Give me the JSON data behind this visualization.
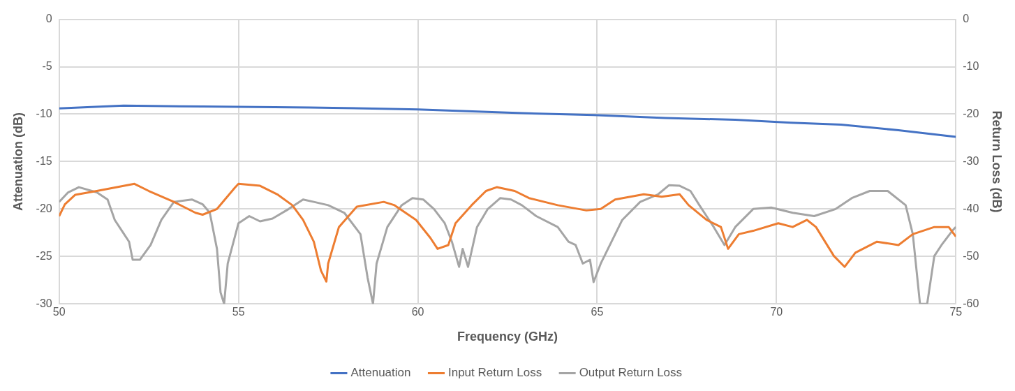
{
  "chart_data": {
    "type": "line",
    "xlabel": "Frequency (GHz)",
    "ylabel": "Attenuation (dB)",
    "y2label": "Return Loss (dB)",
    "xlim": [
      50,
      75
    ],
    "xticks": [
      50,
      55,
      60,
      65,
      70,
      75
    ],
    "ylim": [
      -30,
      0
    ],
    "yticks": [
      -30,
      -25,
      -20,
      -15,
      -10,
      -5,
      0
    ],
    "y2lim": [
      -60,
      0
    ],
    "y2ticks": [
      -60,
      -50,
      -40,
      -30,
      -20,
      -10,
      0
    ],
    "grid": true,
    "legend": "bottom",
    "marker": "none",
    "line_style": "solid",
    "series": [
      {
        "name": "Attenuation",
        "color": "#4472c4",
        "x": [
          50,
          51.8,
          54,
          57,
          60,
          62.9,
          64.9,
          66.9,
          68.85,
          70.4,
          71.8,
          73.4,
          75
        ],
        "values": [
          -9.4,
          -9.1,
          -9.2,
          -9.3,
          -9.5,
          -9.9,
          -10.1,
          -10.4,
          -10.6,
          -10.9,
          -11.1,
          -11.7,
          -12.4
        ]
      },
      {
        "name": "Input Return Loss",
        "color": "#ed7d31",
        "axis": "y2",
        "x": [
          50,
          50.16,
          50.45,
          51.05,
          52.1,
          52.5,
          53.2,
          53.8,
          54,
          54.4,
          54.9,
          55,
          55.6,
          56.1,
          56.5,
          56.8,
          57.1,
          57.3,
          57.45,
          57.5,
          57.8,
          58.3,
          59.05,
          59.35,
          59.95,
          60.35,
          60.55,
          60.85,
          61.05,
          61.5,
          61.9,
          62.2,
          62.7,
          63.1,
          63.9,
          64.7,
          65.1,
          65.5,
          66.3,
          66.8,
          67.3,
          67.55,
          68.05,
          68.45,
          68.65,
          68.95,
          69.35,
          70.05,
          70.45,
          70.85,
          71.1,
          71.6,
          71.9,
          72.2,
          72.8,
          73.4,
          73.8,
          74.4,
          74.8,
          75
        ],
        "values": [
          -41.5,
          -39,
          -37,
          -36.2,
          -34.7,
          -36.2,
          -38.5,
          -40.8,
          -41.2,
          -40,
          -35.5,
          -34.7,
          -35.1,
          -37,
          -39.2,
          -42.3,
          -46.9,
          -53,
          -55.3,
          -51.5,
          -43.8,
          -39.5,
          -38.5,
          -39.2,
          -42.3,
          -46.1,
          -48.4,
          -47.6,
          -43,
          -39.2,
          -36.2,
          -35.4,
          -36.2,
          -37.7,
          -39.2,
          -40.3,
          -40,
          -38,
          -36.9,
          -37.4,
          -36.9,
          -39.2,
          -42.3,
          -43.8,
          -48.4,
          -45.3,
          -44.6,
          -43,
          -43.8,
          -42.3,
          -43.8,
          -49.9,
          -52.2,
          -49.2,
          -46.9,
          -47.6,
          -45.3,
          -43.8,
          -43.8,
          -45.8
        ]
      },
      {
        "name": "Output Return Loss",
        "color": "#a5a5a5",
        "axis": "y2",
        "x": [
          50,
          50.25,
          50.55,
          51.05,
          51.35,
          51.55,
          51.75,
          51.95,
          52.05,
          52.25,
          52.55,
          52.85,
          53.2,
          53.7,
          54,
          54.2,
          54.4,
          54.5,
          54.6,
          54.7,
          55,
          55.3,
          55.6,
          55.95,
          56.4,
          56.8,
          57.1,
          57.5,
          57.95,
          58.4,
          58.6,
          58.75,
          58.85,
          59.15,
          59.55,
          59.85,
          60.15,
          60.45,
          60.75,
          60.95,
          61.15,
          61.25,
          61.4,
          61.65,
          61.95,
          62.3,
          62.6,
          62.9,
          63.3,
          63.9,
          64.2,
          64.4,
          64.6,
          64.8,
          64.9,
          65.1,
          65.4,
          65.7,
          66.2,
          66.7,
          67,
          67.3,
          67.6,
          67.85,
          68.25,
          68.55,
          68.85,
          69.35,
          69.85,
          70.45,
          71.05,
          71.65,
          72.1,
          72.6,
          73.1,
          73.6,
          73.8,
          74,
          74.2,
          74.4,
          74.6,
          74.9,
          75
        ],
        "values": [
          -38.5,
          -36.5,
          -35.4,
          -36.5,
          -38,
          -42.3,
          -44.6,
          -46.9,
          -50.7,
          -50.7,
          -47.6,
          -42.3,
          -38.5,
          -38,
          -39,
          -40.8,
          -48.4,
          -57.6,
          -60,
          -51.5,
          -43,
          -41.5,
          -42.6,
          -42,
          -40,
          -38,
          -38.5,
          -39.2,
          -40.8,
          -45.3,
          -54.5,
          -60,
          -51.5,
          -43.8,
          -39.2,
          -37.7,
          -38,
          -40,
          -43,
          -46.9,
          -52.2,
          -48.4,
          -52.2,
          -43.8,
          -40,
          -37.7,
          -38,
          -39.2,
          -41.5,
          -43.8,
          -46.9,
          -47.6,
          -51.5,
          -50.7,
          -55.4,
          -51.5,
          -46.9,
          -42.3,
          -38.5,
          -36.9,
          -35,
          -35.1,
          -36.2,
          -39.2,
          -43.8,
          -47.6,
          -43.8,
          -40,
          -39.7,
          -40.8,
          -41.5,
          -40,
          -37.7,
          -36.2,
          -36.2,
          -39.2,
          -45.3,
          -60,
          -60,
          -49.9,
          -47.6,
          -44.6,
          -43.8
        ]
      }
    ]
  }
}
